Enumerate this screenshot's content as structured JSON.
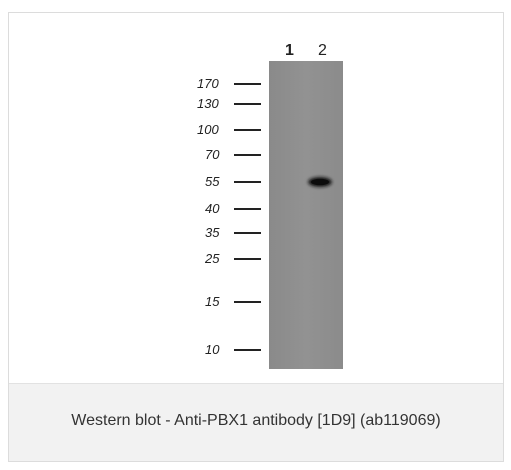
{
  "caption": "Western blot - Anti-PBX1 antibody [1D9] (ab119069)",
  "lanes": [
    "1",
    "2"
  ],
  "markers": [
    "170",
    "130",
    "100",
    "70",
    "55",
    "40",
    "35",
    "25",
    "15",
    "10"
  ],
  "colors": {
    "membrane": "#8e8e8e",
    "band": "#141414",
    "caption_background": "#f2f2f2",
    "caption_text": "#333333",
    "border": "#dcdcdc"
  }
}
